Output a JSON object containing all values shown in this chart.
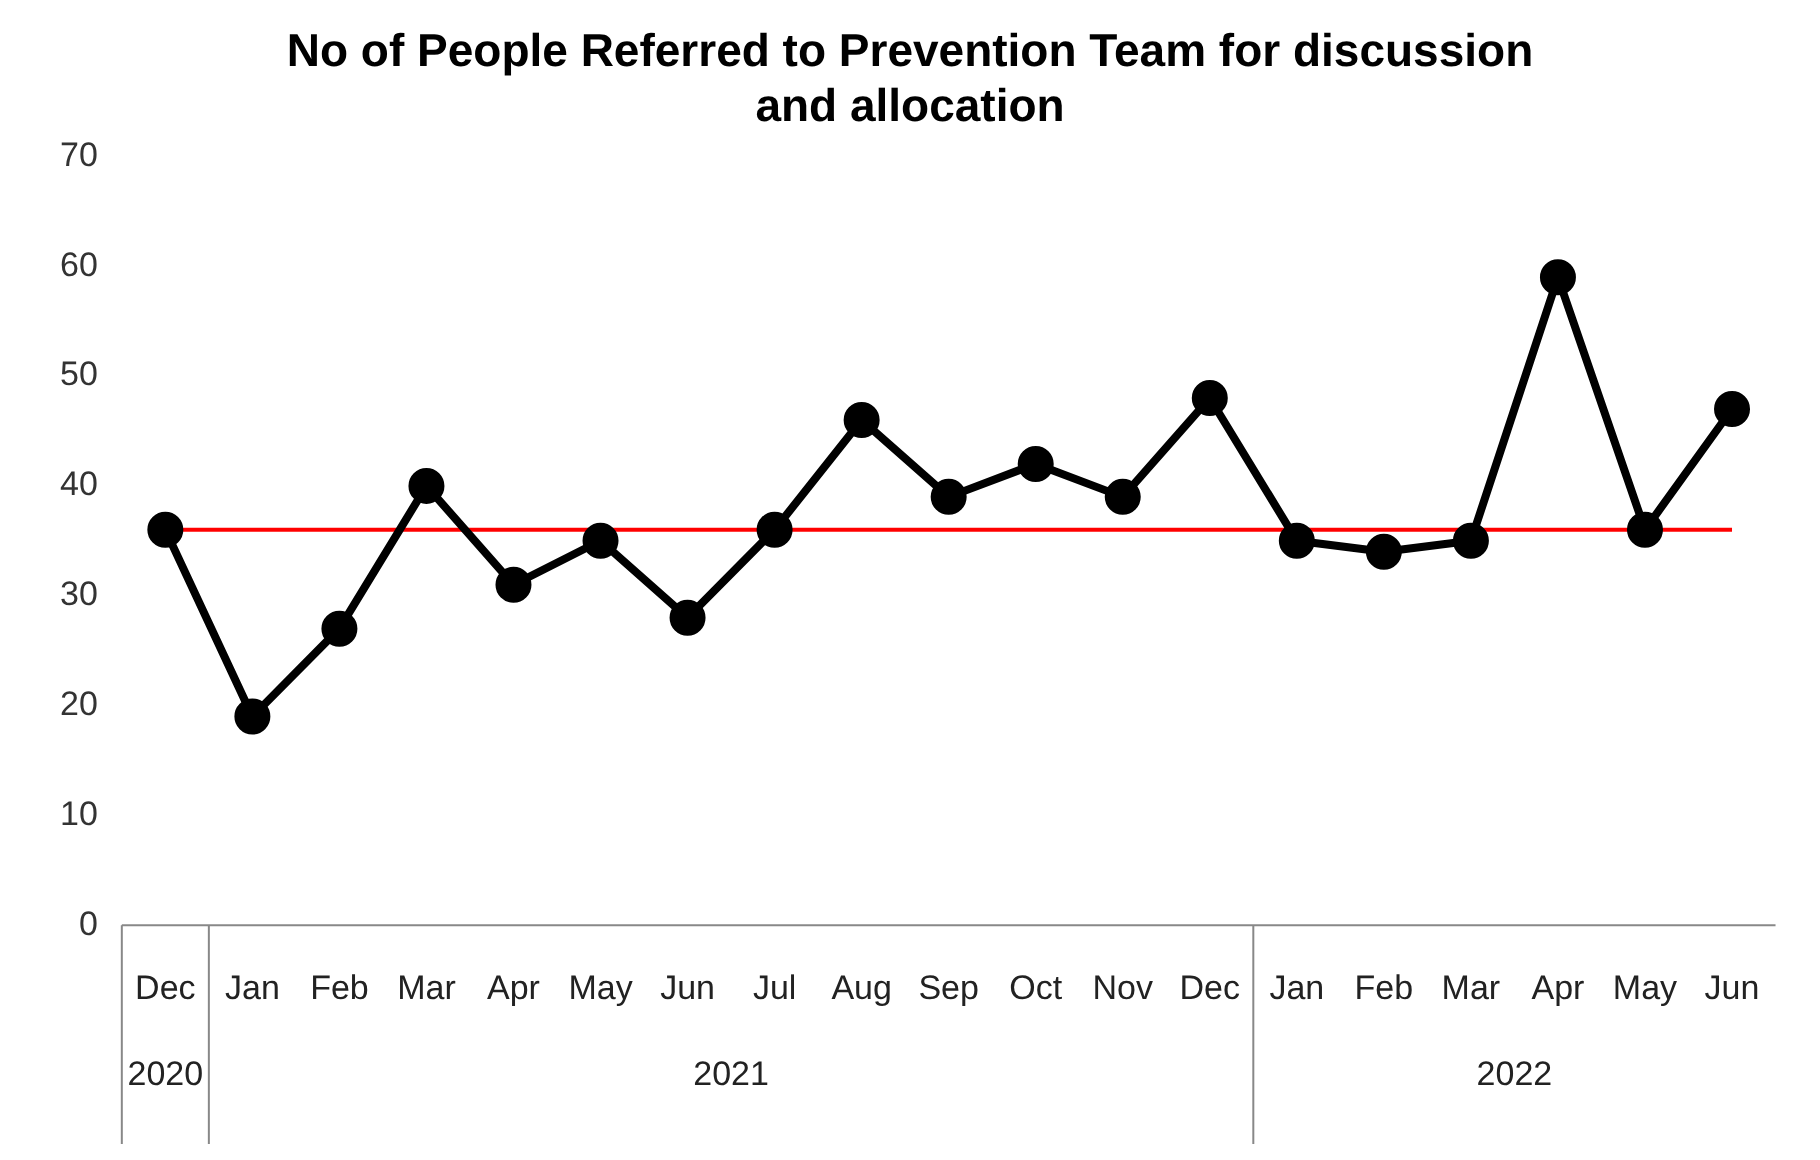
{
  "chart_data": {
    "type": "line",
    "title": "No of People Referred to Prevention Team for discussion and allocation",
    "x": [
      "2020-12",
      "2021-01",
      "2021-02",
      "2021-03",
      "2021-04",
      "2021-05",
      "2021-06",
      "2021-07",
      "2021-08",
      "2021-09",
      "2021-10",
      "2021-11",
      "2021-12",
      "2022-01",
      "2022-02",
      "2022-03",
      "2022-04",
      "2022-05",
      "2022-06"
    ],
    "xlim": [
      "2020-12",
      "2022-06"
    ],
    "xticks": [
      {
        "value": "2020-12",
        "label": "Dec"
      },
      {
        "value": "2021-01",
        "label": "Jan"
      },
      {
        "value": "2021-02",
        "label": "Feb"
      },
      {
        "value": "2021-03",
        "label": "Mar"
      },
      {
        "value": "2021-04",
        "label": "Apr"
      },
      {
        "value": "2021-05",
        "label": "May"
      },
      {
        "value": "2021-06",
        "label": "Jun"
      },
      {
        "value": "2021-07",
        "label": "Jul"
      },
      {
        "value": "2021-08",
        "label": "Aug"
      },
      {
        "value": "2021-09",
        "label": "Sep"
      },
      {
        "value": "2021-10",
        "label": "Oct"
      },
      {
        "value": "2021-11",
        "label": "Nov"
      },
      {
        "value": "2021-12",
        "label": "Dec"
      },
      {
        "value": "2022-01",
        "label": "Jan"
      },
      {
        "value": "2022-02",
        "label": "Feb"
      },
      {
        "value": "2022-03",
        "label": "Mar"
      },
      {
        "value": "2022-04",
        "label": "Apr"
      },
      {
        "value": "2022-05",
        "label": "May"
      },
      {
        "value": "2022-06",
        "label": "Jun"
      }
    ],
    "annotations": [
      "2020",
      "2021",
      "2022"
    ],
    "series": [
      {
        "color": "#000000",
        "values": [
          36,
          19,
          27,
          40,
          31,
          35,
          28,
          36,
          46,
          39,
          42,
          39,
          48,
          35,
          34,
          35,
          59,
          36,
          47
        ]
      }
    ],
    "ylim": [
      0,
      70
    ],
    "yticks": [
      0,
      10,
      20,
      30,
      40,
      50,
      60,
      70
    ],
    "grid": false,
    "legend": false,
    "marker": "circle",
    "line_style": "solid",
    "ref_lines": [
      {
        "axis": "y",
        "value": 36,
        "color": "#ff0000"
      }
    ]
  }
}
